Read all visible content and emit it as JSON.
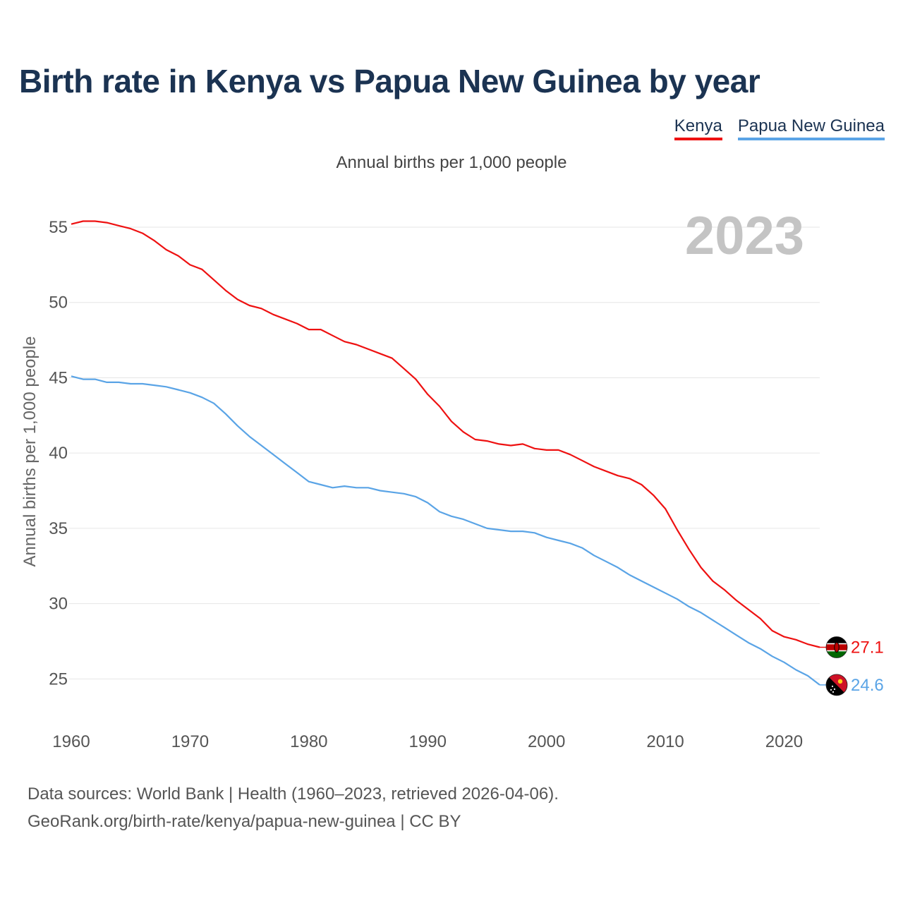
{
  "title": "Birth rate in Kenya vs Papua New Guinea by year",
  "subtitle": "Annual births per 1,000 people",
  "year_watermark": "2023",
  "legend": [
    {
      "name": "Kenya",
      "color": "#ee1111"
    },
    {
      "name": "Papua New Guinea",
      "color": "#5aa4e6"
    }
  ],
  "footer": {
    "line1": "Data sources: World Bank | Health (1960–2023, retrieved 2026-04-06).",
    "line2": "GeoRank.org/birth-rate/kenya/papua-new-guinea | CC BY"
  },
  "chart_data": {
    "type": "line",
    "title": "Birth rate in Kenya vs Papua New Guinea by year",
    "ylabel": "Annual births per 1,000 people",
    "xlabel": "",
    "xlim": [
      1960,
      2023
    ],
    "ylim": [
      23,
      56.5
    ],
    "xticks": [
      1960,
      1970,
      1980,
      1990,
      2000,
      2010,
      2020
    ],
    "yticks": [
      25,
      30,
      35,
      40,
      45,
      50,
      55
    ],
    "grid": true,
    "x": [
      1960,
      1961,
      1962,
      1963,
      1964,
      1965,
      1966,
      1967,
      1968,
      1969,
      1970,
      1971,
      1972,
      1973,
      1974,
      1975,
      1976,
      1977,
      1978,
      1979,
      1980,
      1981,
      1982,
      1983,
      1984,
      1985,
      1986,
      1987,
      1988,
      1989,
      1990,
      1991,
      1992,
      1993,
      1994,
      1995,
      1996,
      1997,
      1998,
      1999,
      2000,
      2001,
      2002,
      2003,
      2004,
      2005,
      2006,
      2007,
      2008,
      2009,
      2010,
      2011,
      2012,
      2013,
      2014,
      2015,
      2016,
      2017,
      2018,
      2019,
      2020,
      2021,
      2022,
      2023
    ],
    "series": [
      {
        "name": "Kenya",
        "color": "#ee1111",
        "end_label": "27.1",
        "values": [
          55.2,
          55.4,
          55.4,
          55.3,
          55.1,
          54.9,
          54.6,
          54.1,
          53.5,
          53.1,
          52.5,
          52.2,
          51.5,
          50.8,
          50.2,
          49.8,
          49.6,
          49.2,
          48.9,
          48.6,
          48.2,
          48.2,
          47.8,
          47.4,
          47.2,
          46.9,
          46.6,
          46.3,
          45.6,
          44.9,
          43.9,
          43.1,
          42.1,
          41.4,
          40.9,
          40.8,
          40.6,
          40.5,
          40.6,
          40.3,
          40.2,
          40.2,
          39.9,
          39.5,
          39.1,
          38.8,
          38.5,
          38.3,
          37.9,
          37.2,
          36.3,
          34.9,
          33.6,
          32.4,
          31.5,
          30.9,
          30.2,
          29.6,
          29.0,
          28.2,
          27.8,
          27.6,
          27.3,
          27.1
        ]
      },
      {
        "name": "Papua New Guinea",
        "color": "#5aa4e6",
        "end_label": "24.6",
        "values": [
          45.1,
          44.9,
          44.9,
          44.7,
          44.7,
          44.6,
          44.6,
          44.5,
          44.4,
          44.2,
          44.0,
          43.7,
          43.3,
          42.6,
          41.8,
          41.1,
          40.5,
          39.9,
          39.3,
          38.7,
          38.1,
          37.9,
          37.7,
          37.8,
          37.7,
          37.7,
          37.5,
          37.4,
          37.3,
          37.1,
          36.7,
          36.1,
          35.8,
          35.6,
          35.3,
          35.0,
          34.9,
          34.8,
          34.8,
          34.7,
          34.4,
          34.2,
          34.0,
          33.7,
          33.2,
          32.8,
          32.4,
          31.9,
          31.5,
          31.1,
          30.7,
          30.3,
          29.8,
          29.4,
          28.9,
          28.4,
          27.9,
          27.4,
          27.0,
          26.5,
          26.1,
          25.6,
          25.2,
          24.6
        ]
      }
    ]
  }
}
